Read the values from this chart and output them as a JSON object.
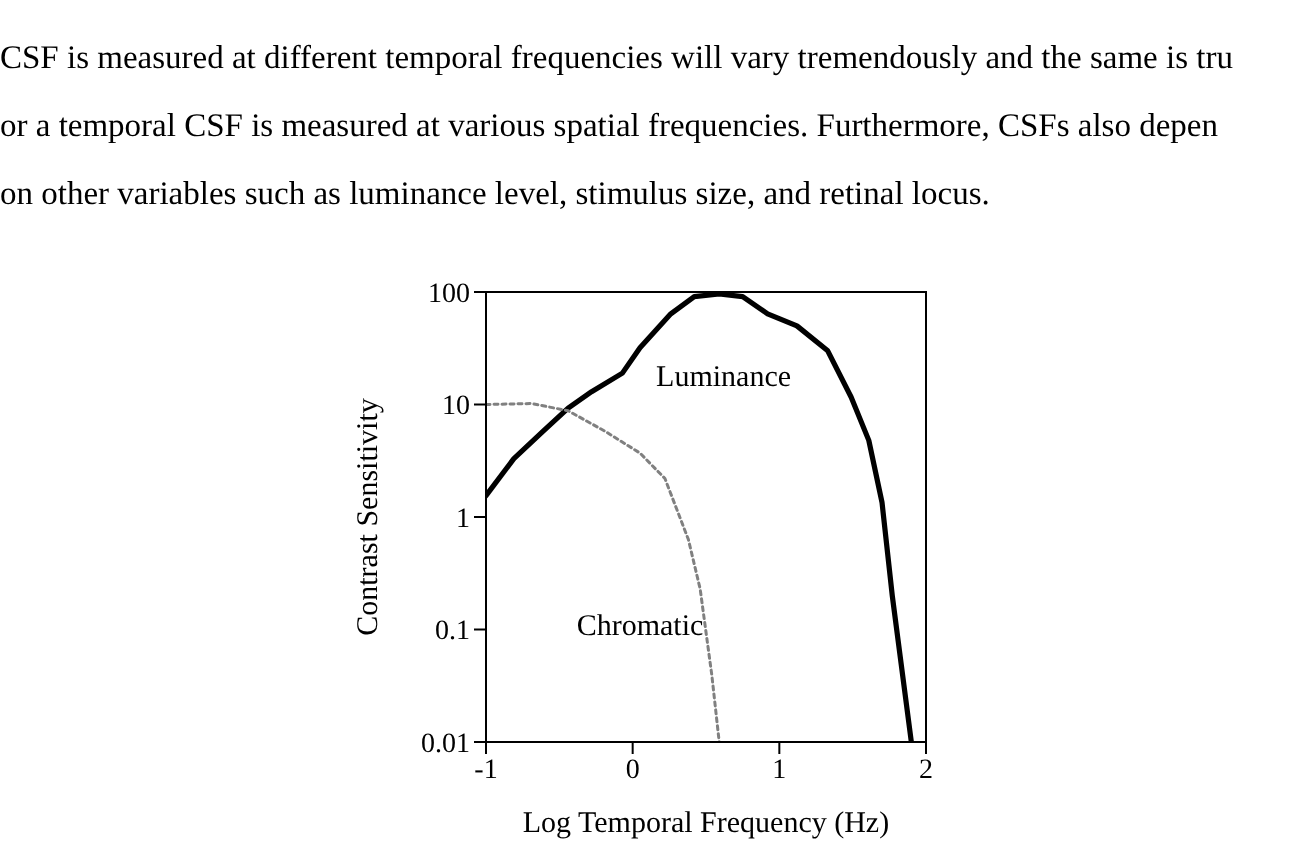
{
  "chart_data": {
    "type": "line",
    "xlabel": "Log Temporal Frequency (Hz)",
    "ylabel": "Contrast Sensitivity",
    "annotations": [
      "CSF is measured at different temporal frequencies will vary tremendously and the same is tru",
      "or a temporal CSF is measured at various spatial frequencies. Furthermore, CSFs also depen",
      "on other variables such as luminance level, stimulus size, and retinal locus."
    ],
    "log": "y",
    "xlim": [
      -1,
      2
    ],
    "xticks": [
      -1,
      0,
      1,
      2
    ],
    "ylim": [
      0.01,
      100
    ],
    "yticks": [
      0.01,
      0.1,
      1,
      10,
      100
    ],
    "series": [
      {
        "name": "Luminance",
        "color": "#000000",
        "line_style": "solid",
        "x": [
          -1,
          -0.81,
          -0.61,
          -0.44,
          -0.28,
          -0.07,
          0.05,
          0.26,
          0.42,
          0.59,
          0.75,
          0.92,
          1.12,
          1.33,
          1.49,
          1.61,
          1.7,
          1.77,
          1.9
        ],
        "values": [
          1.55,
          3.3,
          5.8,
          9.3,
          13,
          19,
          32,
          64,
          91,
          96,
          91,
          64,
          50,
          30,
          11.6,
          4.8,
          1.35,
          0.2,
          0.01
        ]
      },
      {
        "name": "Chromatic",
        "color": "#808080",
        "line_style": "dotted",
        "x": [
          -1,
          -0.69,
          -0.44,
          -0.19,
          0.05,
          0.22,
          0.38,
          0.46,
          0.54,
          0.59
        ],
        "values": [
          10,
          10.2,
          8.8,
          5.8,
          3.7,
          2.2,
          0.63,
          0.23,
          0.039,
          0.01
        ]
      }
    ]
  }
}
